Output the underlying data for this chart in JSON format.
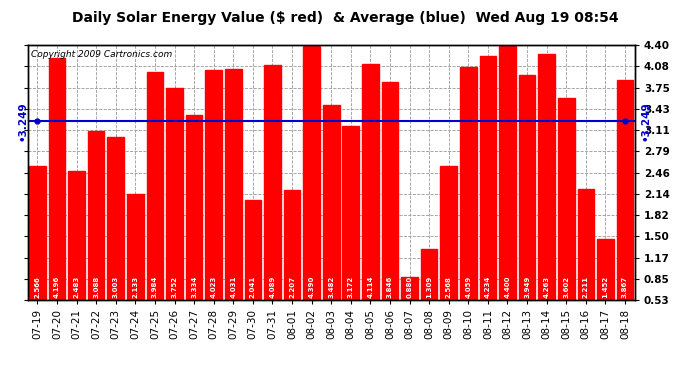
{
  "title": "Daily Solar Energy Value ($ red)  & Average (blue)  Wed Aug 19 08:54",
  "copyright": "Copyright 2009 Cartronics.com",
  "categories": [
    "07-19",
    "07-20",
    "07-21",
    "07-22",
    "07-23",
    "07-24",
    "07-25",
    "07-26",
    "07-27",
    "07-28",
    "07-29",
    "07-30",
    "07-31",
    "08-01",
    "08-02",
    "08-03",
    "08-04",
    "08-05",
    "08-06",
    "08-07",
    "08-08",
    "08-09",
    "08-10",
    "08-11",
    "08-12",
    "08-13",
    "08-14",
    "08-15",
    "08-16",
    "08-17",
    "08-18"
  ],
  "values": [
    2.566,
    4.196,
    2.483,
    3.088,
    3.003,
    2.133,
    3.984,
    3.752,
    3.334,
    4.023,
    4.031,
    2.041,
    4.089,
    2.207,
    4.39,
    3.482,
    3.172,
    4.114,
    3.846,
    0.88,
    1.309,
    2.568,
    4.059,
    4.234,
    4.4,
    3.949,
    4.263,
    3.602,
    2.211,
    1.452,
    3.867
  ],
  "average": 3.249,
  "bar_color": "#ff0000",
  "avg_color": "#0000cc",
  "background_color": "#ffffff",
  "plot_bg_color": "#ffffff",
  "grid_color": "#999999",
  "ylim_min": 0.53,
  "ylim_max": 4.4,
  "yticks": [
    0.53,
    0.85,
    1.17,
    1.5,
    1.82,
    2.14,
    2.46,
    2.79,
    3.11,
    3.43,
    3.75,
    4.08,
    4.4
  ],
  "title_fontsize": 10,
  "copyright_fontsize": 6.5,
  "value_fontsize": 5.0,
  "tick_fontsize": 7.5
}
